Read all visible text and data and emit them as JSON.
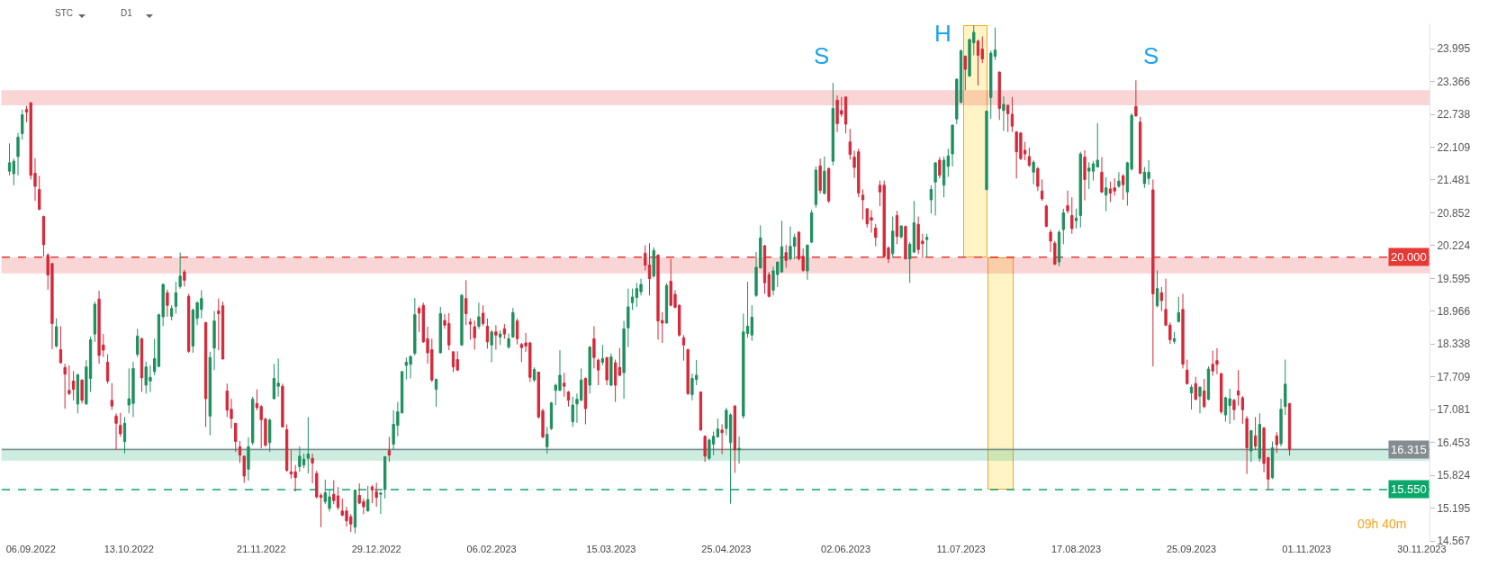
{
  "chart_data": {
    "type": "candlestick",
    "categories": [
      null,
      null,
      null,
      null,
      null,
      "06.09.2022",
      null,
      null,
      null,
      null,
      null,
      null,
      null,
      null,
      null,
      null,
      null,
      null,
      null,
      null,
      null,
      null,
      null,
      null,
      null,
      null,
      null,
      null,
      "13.10.2022",
      null,
      null,
      null,
      null,
      null,
      null,
      null,
      null,
      null,
      null,
      null,
      null,
      null,
      null,
      null,
      null,
      null,
      null,
      null,
      null,
      null,
      null,
      null,
      null,
      null,
      null,
      null,
      null,
      null,
      null,
      "21.11.2022",
      null,
      null,
      null,
      null,
      null,
      null,
      null,
      null,
      null,
      null,
      null,
      null,
      null,
      null,
      null,
      null,
      null,
      null,
      null,
      null,
      null,
      null,
      null,
      null,
      null,
      null,
      "29.12.2022",
      null,
      null,
      null,
      null,
      null,
      null,
      null,
      null,
      null,
      null,
      null,
      null,
      null,
      null,
      null,
      null,
      null,
      null,
      null,
      null,
      null,
      null,
      null,
      null,
      null,
      null,
      "06.02.2023",
      null,
      null,
      null,
      null,
      null,
      null,
      null,
      null,
      null,
      null,
      null,
      null,
      null,
      null,
      null,
      null,
      null,
      null,
      null,
      null,
      null,
      null,
      null,
      null,
      null,
      null,
      null,
      "15.03.2023",
      null,
      null,
      null,
      null,
      null,
      null,
      null,
      null,
      null,
      null,
      null,
      null,
      null,
      null,
      null,
      null,
      null,
      null,
      null,
      null,
      null,
      null,
      null,
      null,
      null,
      null,
      "25.04.2023",
      null,
      null,
      null,
      null,
      null,
      null,
      null,
      null,
      null,
      null,
      null,
      null,
      null,
      null,
      null,
      null,
      null,
      null,
      null,
      null,
      null,
      null,
      null,
      null,
      null,
      null,
      null,
      "02.06.2023",
      null,
      null,
      null,
      null,
      null,
      null,
      null,
      null,
      null,
      null,
      null,
      null,
      null,
      null,
      null,
      null,
      null,
      null,
      null,
      null,
      null,
      null,
      null,
      null,
      null,
      null,
      "11.07.2023",
      null,
      null,
      null,
      null,
      null,
      null,
      null,
      null,
      null,
      null,
      null,
      null,
      null,
      null,
      null,
      null,
      null,
      null,
      null,
      null,
      null,
      null,
      null,
      null,
      null,
      null,
      "17.08.2023",
      null,
      null,
      null,
      null,
      null,
      null,
      null,
      null,
      null,
      null,
      null,
      null,
      null,
      null,
      null,
      null,
      null,
      null,
      null,
      null,
      null,
      null,
      null,
      null,
      null,
      null,
      "25.09.2023",
      null,
      null,
      null,
      null,
      null,
      null,
      null,
      null,
      null,
      null,
      null,
      null,
      null,
      null,
      null,
      null,
      null,
      null,
      null,
      null,
      null,
      null,
      null,
      null,
      null,
      null,
      "01.11.2023",
      null,
      null,
      null,
      null,
      null,
      null,
      null,
      null,
      null,
      null,
      null,
      null,
      null,
      null,
      null,
      null,
      null,
      null,
      null,
      null,
      null,
      null,
      null,
      null,
      null,
      null,
      "30.11.2023"
    ],
    "ohlc": [
      [
        21.65,
        22.18,
        21.57,
        21.81
      ],
      [
        21.6,
        21.89,
        21.38,
        21.84
      ],
      [
        21.93,
        22.38,
        21.57,
        22.3
      ],
      [
        22.37,
        22.83,
        22.25,
        22.73
      ],
      [
        22.83,
        22.9,
        22.59,
        22.78
      ],
      [
        22.96,
        22.97,
        21.49,
        21.57
      ],
      [
        21.61,
        21.9,
        21.08,
        21.36
      ],
      [
        21.3,
        21.56,
        20.9,
        20.92
      ],
      [
        20.78,
        20.8,
        20.01,
        20.24
      ],
      [
        20.04,
        20.08,
        19.38,
        19.66
      ],
      [
        19.88,
        19.88,
        18.24,
        18.73
      ],
      [
        18.3,
        18.83,
        18.27,
        18.67
      ],
      [
        18.23,
        18.68,
        17.96,
        17.98
      ],
      [
        17.89,
        17.96,
        17.1,
        17.76
      ],
      [
        17.45,
        17.93,
        17.36,
        17.39
      ],
      [
        17.63,
        17.82,
        17.26,
        17.47
      ],
      [
        17.19,
        17.77,
        17.01,
        17.75
      ],
      [
        17.65,
        17.66,
        17.2,
        17.26
      ],
      [
        17.19,
        18.03,
        17.17,
        17.9
      ],
      [
        17.68,
        18.48,
        17.42,
        18.42
      ],
      [
        18.53,
        19.15,
        18.38,
        19.1
      ],
      [
        19.2,
        19.36,
        17.96,
        18.12
      ],
      [
        18.32,
        18.53,
        18.09,
        18.22
      ],
      [
        17.99,
        18.14,
        17.58,
        17.63
      ],
      [
        17.26,
        17.59,
        17.08,
        17.15
      ],
      [
        16.96,
        17.01,
        16.32,
        16.82
      ],
      [
        16.78,
        17.02,
        16.56,
        16.62
      ],
      [
        16.47,
        16.94,
        16.24,
        16.82
      ],
      [
        17.17,
        17.87,
        17.01,
        17.29
      ],
      [
        17.2,
        18.0,
        16.94,
        17.87
      ],
      [
        18.14,
        18.63,
        18.09,
        18.49
      ],
      [
        18.44,
        18.46,
        17.42,
        17.69
      ],
      [
        17.55,
        18.0,
        17.39,
        17.9
      ],
      [
        17.63,
        17.93,
        17.42,
        17.7
      ],
      [
        17.81,
        18.44,
        17.74,
        18.06
      ],
      [
        17.91,
        18.92,
        17.89,
        18.9
      ],
      [
        18.86,
        19.5,
        18.68,
        19.48
      ],
      [
        19.32,
        19.38,
        18.86,
        19.08
      ],
      [
        18.87,
        19.08,
        18.79,
        19.02
      ],
      [
        19.06,
        19.53,
        18.92,
        19.32
      ],
      [
        19.44,
        20.09,
        19.4,
        19.64
      ],
      [
        19.72,
        19.76,
        19.44,
        19.56
      ],
      [
        19.25,
        19.3,
        18.17,
        18.2
      ],
      [
        18.3,
        19.02,
        18.17,
        18.99
      ],
      [
        18.83,
        19.16,
        18.7,
        19.13
      ],
      [
        19.0,
        19.37,
        18.83,
        19.21
      ],
      [
        18.75,
        18.76,
        16.75,
        17.29
      ],
      [
        16.96,
        18.19,
        16.59,
        18.08
      ],
      [
        18.26,
        18.97,
        17.84,
        18.78
      ],
      [
        18.97,
        19.21,
        18.22,
        18.92
      ],
      [
        19.07,
        19.15,
        18.05,
        18.05
      ],
      [
        17.44,
        17.58,
        16.94,
        17.07
      ],
      [
        17.09,
        17.29,
        16.72,
        16.91
      ],
      [
        16.82,
        16.82,
        16.27,
        16.47
      ],
      [
        16.37,
        16.48,
        16.06,
        16.21
      ],
      [
        16.19,
        16.19,
        15.68,
        15.81
      ],
      [
        15.94,
        16.55,
        15.72,
        16.37
      ],
      [
        16.45,
        17.33,
        16.4,
        17.28
      ],
      [
        17.2,
        17.47,
        17.07,
        17.12
      ],
      [
        17.14,
        17.17,
        16.34,
        16.89
      ],
      [
        16.9,
        16.93,
        16.37,
        16.4
      ],
      [
        16.45,
        16.91,
        16.27,
        16.88
      ],
      [
        17.29,
        17.96,
        17.28,
        17.68
      ],
      [
        17.53,
        18.06,
        17.33,
        17.59
      ],
      [
        17.53,
        17.58,
        16.74,
        16.75
      ],
      [
        16.7,
        16.8,
        15.89,
        15.92
      ],
      [
        15.89,
        16.31,
        15.76,
        15.85
      ],
      [
        15.89,
        16.02,
        15.51,
        15.78
      ],
      [
        15.99,
        16.38,
        15.89,
        16.19
      ],
      [
        16.02,
        16.24,
        15.96,
        16.13
      ],
      [
        16.15,
        16.94,
        15.86,
        16.23
      ],
      [
        16.15,
        16.24,
        15.67,
        16.06
      ],
      [
        15.86,
        15.91,
        15.38,
        15.41
      ],
      [
        15.44,
        15.48,
        14.83,
        15.4
      ],
      [
        15.32,
        15.74,
        15.27,
        15.49
      ],
      [
        15.19,
        15.54,
        15.13,
        15.41
      ],
      [
        15.46,
        15.73,
        15.27,
        15.34
      ],
      [
        15.43,
        15.6,
        15.16,
        15.21
      ],
      [
        15.14,
        15.38,
        15.04,
        15.06
      ],
      [
        15.14,
        15.22,
        14.84,
        14.95
      ],
      [
        15.03,
        15.08,
        14.74,
        14.89
      ],
      [
        14.83,
        15.55,
        14.71,
        15.54
      ],
      [
        15.44,
        15.67,
        15.27,
        15.29
      ],
      [
        15.32,
        15.38,
        15.08,
        15.22
      ],
      [
        15.14,
        15.62,
        15.13,
        15.36
      ],
      [
        15.6,
        15.64,
        15.29,
        15.54
      ],
      [
        15.51,
        15.68,
        15.22,
        15.4
      ],
      [
        15.46,
        15.51,
        15.08,
        15.48
      ],
      [
        15.55,
        16.19,
        15.38,
        16.18
      ],
      [
        16.3,
        16.56,
        16.08,
        16.21
      ],
      [
        16.42,
        17.07,
        16.31,
        16.8
      ],
      [
        16.78,
        17.23,
        16.57,
        17.04
      ],
      [
        17.02,
        17.82,
        17.01,
        17.81
      ],
      [
        17.93,
        18.08,
        17.66,
        17.99
      ],
      [
        17.95,
        18.12,
        17.68,
        18.1
      ],
      [
        18.16,
        19.22,
        18.12,
        18.9
      ],
      [
        19.02,
        19.06,
        18.57,
        18.93
      ],
      [
        19.08,
        19.13,
        18.36,
        18.38
      ],
      [
        18.44,
        18.67,
        17.96,
        18.17
      ],
      [
        18.23,
        18.44,
        17.61,
        17.65
      ],
      [
        17.47,
        17.68,
        17.14,
        17.66
      ],
      [
        18.17,
        19.05,
        18.16,
        18.92
      ],
      [
        18.79,
        18.91,
        18.63,
        18.7
      ],
      [
        18.73,
        18.93,
        18.22,
        18.32
      ],
      [
        18.19,
        18.19,
        17.8,
        17.9
      ],
      [
        18.04,
        18.2,
        17.82,
        17.84
      ],
      [
        18.32,
        19.3,
        18.3,
        19.27
      ],
      [
        19.21,
        19.56,
        18.7,
        18.92
      ],
      [
        18.76,
        18.83,
        18.42,
        18.72
      ],
      [
        18.67,
        18.79,
        18.23,
        18.46
      ],
      [
        18.68,
        19.13,
        18.63,
        18.86
      ],
      [
        18.93,
        19.08,
        18.68,
        18.73
      ],
      [
        18.68,
        18.83,
        18.25,
        18.38
      ],
      [
        18.32,
        18.6,
        17.99,
        18.57
      ],
      [
        18.57,
        18.7,
        18.23,
        18.51
      ],
      [
        18.47,
        18.6,
        18.32,
        18.53
      ],
      [
        18.63,
        18.72,
        18.44,
        18.53
      ],
      [
        18.28,
        18.54,
        18.25,
        18.44
      ],
      [
        18.47,
        19.03,
        18.46,
        18.94
      ],
      [
        18.78,
        18.83,
        18.33,
        18.44
      ],
      [
        18.33,
        18.36,
        17.99,
        18.27
      ],
      [
        18.36,
        18.55,
        18.19,
        18.3
      ],
      [
        18.36,
        18.38,
        17.61,
        17.7
      ],
      [
        17.65,
        17.89,
        17.61,
        17.85
      ],
      [
        17.8,
        17.81,
        16.91,
        16.94
      ],
      [
        17.06,
        17.1,
        16.53,
        16.56
      ],
      [
        16.37,
        16.75,
        16.24,
        16.61
      ],
      [
        16.72,
        17.23,
        16.69,
        17.21
      ],
      [
        17.45,
        17.58,
        17.17,
        17.55
      ],
      [
        17.45,
        18.22,
        17.44,
        17.74
      ],
      [
        17.59,
        17.79,
        17.33,
        17.53
      ],
      [
        17.42,
        17.44,
        17.14,
        17.26
      ],
      [
        16.85,
        17.33,
        16.75,
        17.17
      ],
      [
        17.19,
        17.39,
        16.83,
        17.28
      ],
      [
        17.26,
        17.87,
        17.25,
        17.65
      ],
      [
        17.68,
        17.7,
        16.8,
        17.1
      ],
      [
        17.55,
        18.3,
        17.39,
        18.28
      ],
      [
        18.44,
        18.68,
        17.87,
        18.08
      ],
      [
        18.03,
        18.06,
        17.55,
        17.84
      ],
      [
        17.99,
        18.32,
        17.93,
        18.06
      ],
      [
        18.08,
        18.09,
        17.55,
        17.65
      ],
      [
        17.55,
        18.16,
        17.53,
        18.09
      ],
      [
        17.98,
        18.04,
        17.23,
        17.55
      ],
      [
        17.89,
        18.26,
        17.72,
        17.74
      ],
      [
        17.79,
        18.78,
        17.29,
        18.63
      ],
      [
        18.65,
        19.4,
        18.28,
        19.05
      ],
      [
        19.13,
        19.4,
        18.99,
        19.24
      ],
      [
        19.23,
        19.51,
        19.05,
        19.4
      ],
      [
        19.34,
        19.59,
        19.27,
        19.48
      ],
      [
        20.08,
        20.23,
        19.75,
        19.85
      ],
      [
        19.85,
        20.27,
        19.27,
        19.59
      ],
      [
        19.64,
        20.19,
        19.61,
        20.13
      ],
      [
        20.04,
        20.06,
        18.42,
        18.78
      ],
      [
        18.79,
        18.95,
        18.36,
        18.74
      ],
      [
        18.74,
        19.5,
        18.73,
        19.46
      ],
      [
        19.54,
        19.97,
        19.06,
        19.08
      ],
      [
        19.29,
        19.37,
        19.02,
        19.04
      ],
      [
        19.08,
        19.1,
        18.48,
        18.51
      ],
      [
        18.46,
        18.51,
        18.02,
        18.32
      ],
      [
        18.23,
        18.25,
        17.36,
        17.39
      ],
      [
        17.37,
        17.77,
        17.26,
        17.68
      ],
      [
        17.66,
        18.03,
        17.55,
        17.74
      ],
      [
        17.42,
        17.42,
        16.68,
        16.69
      ],
      [
        16.57,
        16.59,
        16.08,
        16.19
      ],
      [
        16.15,
        16.53,
        16.11,
        16.5
      ],
      [
        16.42,
        16.66,
        16.21,
        16.57
      ],
      [
        16.56,
        16.91,
        16.55,
        16.71
      ],
      [
        16.69,
        16.8,
        16.23,
        16.64
      ],
      [
        16.72,
        17.12,
        16.59,
        17.07
      ],
      [
        16.45,
        17.01,
        15.28,
        16.98
      ],
      [
        17.15,
        17.17,
        15.87,
        16.31
      ],
      [
        16.31,
        16.57,
        16.05,
        16.34
      ],
      [
        16.96,
        18.92,
        16.91,
        18.57
      ],
      [
        18.54,
        19.53,
        18.46,
        18.68
      ],
      [
        18.51,
        19.08,
        18.4,
        18.85
      ],
      [
        19.27,
        20.1,
        19.24,
        19.81
      ],
      [
        19.8,
        20.61,
        19.78,
        20.37
      ],
      [
        20.22,
        20.24,
        19.3,
        19.51
      ],
      [
        19.67,
        19.72,
        19.23,
        19.25
      ],
      [
        19.37,
        19.82,
        19.27,
        19.74
      ],
      [
        19.67,
        19.91,
        19.43,
        19.91
      ],
      [
        19.72,
        20.7,
        19.7,
        20.2
      ],
      [
        20.09,
        20.24,
        19.8,
        19.94
      ],
      [
        19.97,
        20.59,
        19.94,
        20.21
      ],
      [
        20.21,
        20.45,
        19.96,
        20.38
      ],
      [
        20.48,
        20.5,
        19.94,
        19.97
      ],
      [
        20.02,
        20.17,
        19.72,
        19.75
      ],
      [
        19.74,
        20.25,
        19.57,
        20.23
      ],
      [
        20.29,
        20.91,
        20.27,
        20.85
      ],
      [
        21.01,
        21.74,
        20.95,
        21.67
      ],
      [
        21.75,
        21.89,
        21.22,
        21.28
      ],
      [
        21.22,
        21.93,
        21.21,
        21.65
      ],
      [
        21.7,
        21.72,
        21.04,
        21.08
      ],
      [
        21.84,
        23.34,
        21.76,
        22.85
      ],
      [
        23.01,
        23.1,
        22.4,
        22.56
      ],
      [
        22.81,
        23.07,
        22.69,
        22.74
      ],
      [
        23.07,
        23.08,
        22.37,
        22.55
      ],
      [
        22.21,
        22.46,
        21.87,
        21.97
      ],
      [
        21.92,
        22.04,
        21.52,
        21.72
      ],
      [
        22.02,
        22.08,
        21.15,
        21.23
      ],
      [
        21.19,
        21.3,
        20.72,
        21.1
      ],
      [
        20.93,
        20.94,
        20.57,
        20.64
      ],
      [
        20.76,
        20.9,
        20.47,
        20.71
      ],
      [
        20.56,
        20.64,
        20.21,
        20.38
      ],
      [
        21.38,
        21.47,
        20.98,
        21.25
      ],
      [
        21.38,
        21.47,
        20.0,
        20.02
      ],
      [
        20.18,
        20.21,
        19.89,
        19.97
      ],
      [
        20.07,
        20.78,
        19.99,
        20.5
      ],
      [
        20.8,
        20.89,
        20.25,
        20.4
      ],
      [
        20.39,
        20.61,
        20.36,
        20.6
      ],
      [
        20.59,
        20.61,
        19.96,
        19.97
      ],
      [
        19.97,
        20.29,
        19.51,
        20.25
      ],
      [
        20.1,
        21.08,
        20.08,
        20.66
      ],
      [
        20.63,
        20.78,
        20.06,
        20.15
      ],
      [
        20.31,
        20.45,
        19.99,
        20.26
      ],
      [
        20.34,
        20.45,
        20.01,
        20.38
      ],
      [
        21.1,
        21.38,
        20.84,
        21.3
      ],
      [
        21.44,
        21.82,
        20.8,
        21.81
      ],
      [
        21.86,
        21.92,
        21.51,
        21.57
      ],
      [
        21.38,
        21.93,
        21.15,
        21.86
      ],
      [
        21.74,
        22.08,
        21.54,
        21.94
      ],
      [
        21.98,
        22.54,
        21.74,
        22.53
      ],
      [
        22.65,
        23.43,
        22.55,
        23.41
      ],
      [
        22.97,
        23.97,
        22.95,
        23.96
      ],
      [
        23.85,
        23.87,
        23.2,
        23.6
      ],
      [
        23.47,
        24.19,
        23.46,
        24.17
      ],
      [
        24.11,
        24.44,
        23.87,
        24.31
      ],
      [
        24.14,
        24.17,
        23.29,
        23.87
      ],
      [
        23.99,
        24.23,
        23.72,
        23.8
      ],
      [
        21.3,
        22.81,
        21.28,
        22.8
      ],
      [
        23.06,
        23.96,
        22.65,
        23.91
      ],
      [
        23.85,
        24.4,
        23.78,
        23.97
      ],
      [
        23.55,
        23.55,
        22.63,
        22.85
      ],
      [
        22.81,
        23.08,
        22.42,
        22.93
      ],
      [
        22.91,
        22.93,
        22.4,
        22.75
      ],
      [
        22.74,
        23.07,
        22.4,
        22.51
      ],
      [
        22.4,
        22.42,
        21.51,
        22.02
      ],
      [
        22.38,
        22.4,
        21.86,
        21.89
      ],
      [
        22.05,
        22.21,
        21.86,
        21.98
      ],
      [
        21.93,
        22.1,
        21.73,
        21.76
      ],
      [
        21.63,
        21.86,
        21.4,
        21.82
      ],
      [
        21.7,
        21.73,
        21.27,
        21.36
      ],
      [
        21.27,
        21.49,
        21.08,
        21.12
      ],
      [
        20.98,
        21.01,
        20.58,
        20.59
      ],
      [
        20.48,
        20.53,
        20.1,
        20.31
      ],
      [
        20.27,
        20.31,
        19.85,
        19.87
      ],
      [
        19.91,
        20.52,
        19.83,
        20.48
      ],
      [
        20.53,
        20.93,
        20.25,
        20.85
      ],
      [
        20.99,
        21.28,
        20.84,
        20.89
      ],
      [
        20.8,
        21.15,
        20.45,
        20.55
      ],
      [
        20.7,
        20.93,
        20.55,
        20.75
      ],
      [
        20.8,
        22.02,
        20.57,
        21.98
      ],
      [
        21.92,
        22.05,
        21.09,
        21.49
      ],
      [
        21.65,
        21.82,
        21.31,
        21.71
      ],
      [
        21.65,
        21.84,
        21.47,
        21.79
      ],
      [
        21.73,
        22.57,
        21.72,
        21.86
      ],
      [
        21.63,
        21.92,
        21.23,
        21.25
      ],
      [
        21.19,
        21.53,
        20.88,
        21.33
      ],
      [
        21.31,
        21.45,
        21.06,
        21.23
      ],
      [
        21.33,
        21.51,
        21.18,
        21.27
      ],
      [
        21.36,
        21.63,
        21.33,
        21.46
      ],
      [
        21.56,
        21.59,
        21.1,
        21.39
      ],
      [
        21.25,
        21.83,
        20.99,
        21.81
      ],
      [
        21.69,
        22.76,
        21.66,
        22.72
      ],
      [
        22.89,
        23.39,
        22.69,
        22.71
      ],
      [
        22.59,
        22.69,
        21.59,
        21.61
      ],
      [
        21.41,
        21.73,
        21.33,
        21.63
      ],
      [
        21.51,
        21.86,
        21.39,
        21.63
      ],
      [
        21.29,
        21.49,
        17.91,
        19.3
      ],
      [
        19.07,
        19.75,
        19.04,
        19.4
      ],
      [
        19.32,
        19.43,
        18.97,
        19.17
      ],
      [
        19.0,
        19.59,
        18.68,
        18.7
      ],
      [
        18.7,
        18.75,
        18.34,
        18.42
      ],
      [
        18.39,
        18.57,
        18.34,
        18.44
      ],
      [
        18.77,
        19.24,
        18.75,
        18.94
      ],
      [
        19.0,
        19.3,
        17.87,
        17.95
      ],
      [
        17.84,
        18.04,
        17.56,
        17.58
      ],
      [
        17.4,
        17.56,
        17.08,
        17.51
      ],
      [
        17.58,
        17.71,
        17.26,
        17.28
      ],
      [
        17.34,
        17.53,
        17.01,
        17.51
      ],
      [
        17.44,
        17.67,
        17.11,
        17.14
      ],
      [
        17.28,
        17.91,
        17.26,
        17.86
      ],
      [
        17.95,
        18.21,
        17.73,
        17.82
      ],
      [
        18.02,
        18.26,
        17.76,
        17.95
      ],
      [
        17.77,
        17.79,
        17.0,
        17.04
      ],
      [
        16.98,
        17.33,
        16.85,
        17.31
      ],
      [
        17.16,
        17.48,
        16.81,
        17.29
      ],
      [
        17.26,
        17.29,
        16.88,
        17.08
      ],
      [
        17.44,
        17.84,
        17.16,
        17.36
      ],
      [
        17.31,
        17.34,
        16.81,
        17.08
      ],
      [
        16.91,
        16.96,
        15.85,
        16.35
      ],
      [
        16.29,
        16.69,
        16.08,
        16.68
      ],
      [
        16.58,
        16.94,
        16.31,
        16.38
      ],
      [
        16.15,
        17.01,
        16.08,
        16.8
      ],
      [
        16.73,
        16.75,
        15.88,
        16.05
      ],
      [
        16.16,
        16.18,
        15.56,
        15.75
      ],
      [
        15.78,
        16.47,
        15.75,
        16.35
      ],
      [
        16.58,
        16.65,
        16.25,
        16.41
      ],
      [
        16.43,
        17.29,
        16.38,
        17.09
      ],
      [
        17.14,
        18.04,
        16.98,
        17.57
      ],
      [
        17.2,
        17.2,
        16.2,
        16.315
      ],
      null,
      null,
      null,
      null,
      null,
      null,
      null,
      null,
      null,
      null,
      null,
      null,
      null,
      null,
      null,
      null,
      null,
      null,
      null,
      null,
      null,
      null,
      null,
      null,
      null,
      null,
      null,
      null,
      null,
      null,
      null
    ],
    "colors": [
      "#1e8f5e",
      "#1e8f5e",
      "#1e8f5e",
      "#1e8f5e",
      "#d62839",
      "#d62839",
      "#d62839",
      "#d62839",
      "#d62839",
      "#d62839",
      "#d62839",
      "#1e8f5e",
      "#d62839",
      "#d62839",
      "#d62839",
      "#d62839",
      "#1e8f5e",
      "#d62839",
      "#1e8f5e",
      "#1e8f5e",
      "#1e8f5e",
      "#d62839",
      "#d62839",
      "#d62839",
      "#d62839",
      "#d62839",
      "#d62839",
      "#1e8f5e",
      "#1e8f5e",
      "#1e8f5e",
      "#1e8f5e",
      "#d62839",
      "#1e8f5e",
      "#1e8f5e",
      "#1e8f5e",
      "#1e8f5e",
      "#1e8f5e",
      "#d62839",
      "#1e8f5e",
      "#1e8f5e",
      "#1e8f5e",
      "#d62839",
      "#d62839",
      "#1e8f5e",
      "#1e8f5e",
      "#1e8f5e",
      "#d62839",
      "#1e8f5e",
      "#1e8f5e",
      "#d62839",
      "#d62839",
      "#d62839",
      "#d62839",
      "#d62839",
      "#d62839",
      "#d62839",
      "#1e8f5e",
      "#1e8f5e",
      "#d62839",
      "#d62839",
      "#d62839",
      "#1e8f5e",
      "#1e8f5e",
      "#1e8f5e",
      "#d62839",
      "#d62839",
      "#d62839",
      "#d62839",
      "#1e8f5e",
      "#1e8f5e",
      "#1e8f5e",
      "#d62839",
      "#d62839",
      "#d62839",
      "#1e8f5e",
      "#1e8f5e",
      "#d62839",
      "#d62839",
      "#d62839",
      "#d62839",
      "#d62839",
      "#1e8f5e",
      "#d62839",
      "#d62839",
      "#1e8f5e",
      "#d62839",
      "#d62839",
      "#1e8f5e",
      "#1e8f5e",
      "#d62839",
      "#1e8f5e",
      "#1e8f5e",
      "#1e8f5e",
      "#1e8f5e",
      "#1e8f5e",
      "#1e8f5e",
      "#d62839",
      "#d62839",
      "#d62839",
      "#d62839",
      "#1e8f5e",
      "#1e8f5e",
      "#d62839",
      "#d62839",
      "#d62839",
      "#d62839",
      "#1e8f5e",
      "#d62839",
      "#d62839",
      "#d62839",
      "#1e8f5e",
      "#d62839",
      "#d62839",
      "#1e8f5e",
      "#d62839",
      "#1e8f5e",
      "#d62839",
      "#1e8f5e",
      "#1e8f5e",
      "#d62839",
      "#d62839",
      "#d62839",
      "#d62839",
      "#1e8f5e",
      "#d62839",
      "#d62839",
      "#1e8f5e",
      "#1e8f5e",
      "#1e8f5e",
      "#1e8f5e",
      "#d62839",
      "#d62839",
      "#1e8f5e",
      "#1e8f5e",
      "#1e8f5e",
      "#d62839",
      "#1e8f5e",
      "#d62839",
      "#d62839",
      "#1e8f5e",
      "#d62839",
      "#1e8f5e",
      "#d62839",
      "#d62839",
      "#1e8f5e",
      "#1e8f5e",
      "#1e8f5e",
      "#1e8f5e",
      "#1e8f5e",
      "#d62839",
      "#d62839",
      "#1e8f5e",
      "#d62839",
      "#d62839",
      "#1e8f5e",
      "#d62839",
      "#d62839",
      "#d62839",
      "#d62839",
      "#d62839",
      "#1e8f5e",
      "#1e8f5e",
      "#d62839",
      "#d62839",
      "#1e8f5e",
      "#1e8f5e",
      "#1e8f5e",
      "#d62839",
      "#1e8f5e",
      "#1e8f5e",
      "#d62839",
      "#1e8f5e",
      "#1e8f5e",
      "#1e8f5e",
      "#1e8f5e",
      "#1e8f5e",
      "#1e8f5e",
      "#d62839",
      "#d62839",
      "#1e8f5e",
      "#1e8f5e",
      "#1e8f5e",
      "#d62839",
      "#1e8f5e",
      "#1e8f5e",
      "#d62839",
      "#d62839",
      "#1e8f5e",
      "#1e8f5e",
      "#1e8f5e",
      "#d62839",
      "#1e8f5e",
      "#d62839",
      "#1e8f5e",
      "#d62839",
      "#d62839",
      "#d62839",
      "#d62839",
      "#d62839",
      "#d62839",
      "#d62839",
      "#d62839",
      "#d62839",
      "#d62839",
      "#d62839",
      "#d62839",
      "#d62839",
      "#1e8f5e",
      "#d62839",
      "#1e8f5e",
      "#d62839",
      "#1e8f5e",
      "#1e8f5e",
      "#d62839",
      "#d62839",
      "#1e8f5e",
      "#1e8f5e",
      "#1e8f5e",
      "#d62839",
      "#1e8f5e",
      "#1e8f5e",
      "#1e8f5e",
      "#1e8f5e",
      "#1e8f5e",
      "#d62839",
      "#1e8f5e",
      "#1e8f5e",
      "#d62839",
      "#d62839",
      "#1e8f5e",
      "#1e8f5e",
      "#1e8f5e",
      "#d62839",
      "#1e8f5e",
      "#d62839",
      "#d62839",
      "#d62839",
      "#d62839",
      "#d62839",
      "#d62839",
      "#1e8f5e",
      "#d62839",
      "#d62839",
      "#d62839",
      "#d62839",
      "#d62839",
      "#1e8f5e",
      "#1e8f5e",
      "#d62839",
      "#d62839",
      "#1e8f5e",
      "#1e8f5e",
      "#d62839",
      "#1e8f5e",
      "#1e8f5e",
      "#1e8f5e",
      "#d62839",
      "#1e8f5e",
      "#d62839",
      "#d62839",
      "#1e8f5e",
      "#d62839",
      "#1e8f5e",
      "#1e8f5e",
      "#d62839",
      "#d62839",
      "#1e8f5e",
      "#1e8f5e",
      "#d62839",
      "#1e8f5e",
      "#d62839",
      "#d62839",
      "#d62839",
      "#1e8f5e",
      "#1e8f5e",
      "#d62839",
      "#d62839",
      "#1e8f5e",
      "#d62839",
      "#1e8f5e",
      "#d62839",
      "#1e8f5e",
      "#d62839",
      "#d62839",
      "#d62839",
      "#1e8f5e",
      "#1e8f5e",
      "#d62839",
      "#d62839",
      "#d62839",
      "#d62839",
      "#1e8f5e",
      "#d62839",
      "#1e8f5e",
      "#d62839",
      "#d62839",
      "#1e8f5e",
      "#d62839",
      "#1e8f5e",
      "#1e8f5e",
      "#d62839",
      null,
      null,
      null,
      null,
      null,
      null,
      null,
      null,
      null,
      null,
      null,
      null,
      null,
      null,
      null,
      null,
      null,
      null,
      null,
      null,
      null,
      null,
      null,
      null,
      null,
      null,
      null,
      null,
      null,
      null,
      null
    ],
    "ylim": [
      14.55,
      24.48
    ],
    "yticks": [
      14.567,
      15.195,
      15.824,
      16.453,
      17.081,
      17.709,
      18.338,
      18.966,
      19.595,
      20.224,
      20.852,
      21.481,
      22.109,
      22.738,
      23.366,
      23.995
    ],
    "ref_lines": [
      {
        "axis": "y",
        "value": 20.0,
        "label": "20.000",
        "color": "#e53935",
        "line_style": "dashed"
      },
      {
        "axis": "y",
        "value": 15.55,
        "label": "15.550",
        "color": "#0aa86a",
        "line_style": "dashed"
      },
      {
        "axis": "y",
        "value": 16.315,
        "label": "16.315",
        "color": "#858c92",
        "line_style": "solid"
      }
    ],
    "bands": [
      {
        "axis": "y",
        "from": 19.7,
        "to": 19.99,
        "color": "#e53935"
      },
      {
        "axis": "y",
        "from": 22.92,
        "to": 23.19,
        "color": "#e53935"
      },
      {
        "axis": "y",
        "from": 16.11,
        "to": 16.34,
        "color": "#0aa86a"
      }
    ],
    "annotations": [
      "STC",
      "D1",
      "09h 40m",
      "S",
      "H",
      "S"
    ],
    "grid": false
  }
}
